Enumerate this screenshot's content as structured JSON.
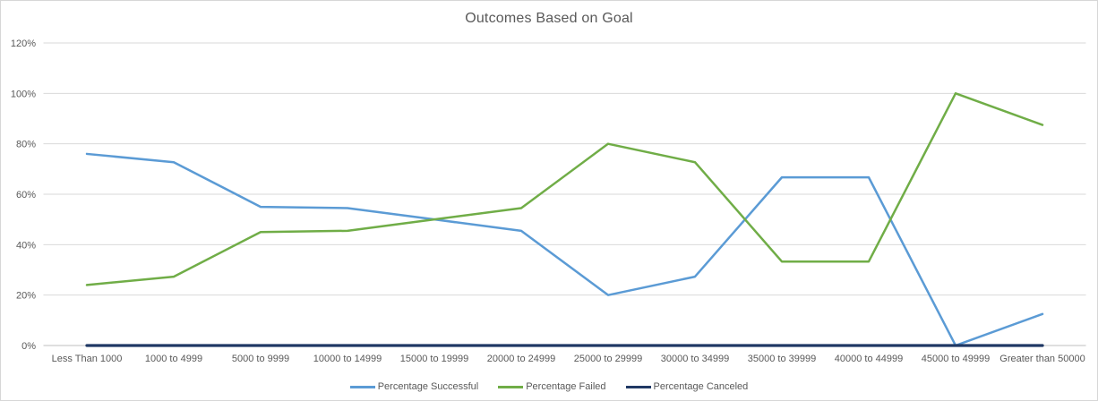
{
  "chart_data": {
    "type": "line",
    "title": "Outcomes Based on Goal",
    "xlabel": "",
    "ylabel": "",
    "categories": [
      "Less Than 1000",
      "1000 to 4999",
      "5000 to 9999",
      "10000 to 14999",
      "15000 to 19999",
      "20000 to 24999",
      "25000 to 29999",
      "30000 to 34999",
      "35000 to 39999",
      "40000 to 44999",
      "45000 to 49999",
      "Greater than 50000"
    ],
    "series": [
      {
        "name": "Percentage Successful",
        "color": "#5B9BD5",
        "values": [
          76,
          72.7,
          55,
          54.5,
          50,
          45.5,
          20,
          27.3,
          66.7,
          66.7,
          0,
          12.5
        ]
      },
      {
        "name": "Percentage Failed",
        "color": "#70AD47",
        "values": [
          24,
          27.3,
          45,
          45.5,
          50,
          54.5,
          80,
          72.7,
          33.3,
          33.3,
          100,
          87.5
        ]
      },
      {
        "name": "Percentage Canceled",
        "color": "#1F3864",
        "values": [
          0,
          0,
          0,
          0,
          0,
          0,
          0,
          0,
          0,
          0,
          0,
          0
        ]
      }
    ],
    "y_axis": {
      "min": 0,
      "max": 120,
      "step": 20,
      "tick_labels": [
        "0%",
        "20%",
        "40%",
        "60%",
        "80%",
        "100%",
        "120%"
      ]
    },
    "grid": true,
    "legend_position": "bottom",
    "colors": {
      "gridline": "#D9D9D9",
      "axis_line": "#BFBFBF",
      "text": "#595959",
      "background": "#FFFFFF",
      "border": "#D7D7D7"
    }
  }
}
